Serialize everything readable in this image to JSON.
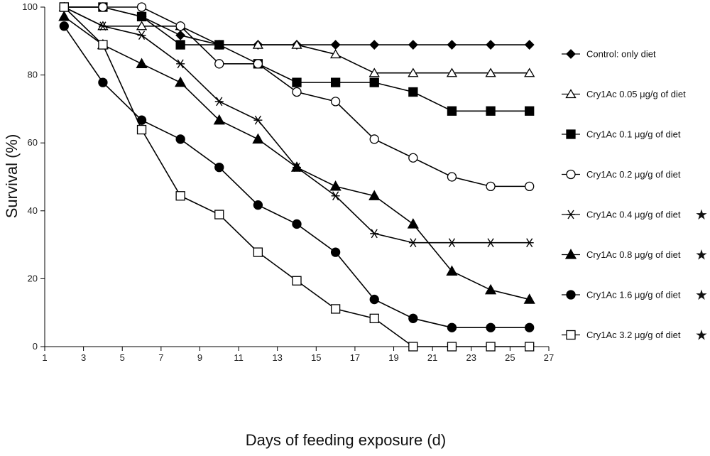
{
  "chart_data": {
    "type": "line",
    "title": "",
    "xlabel": "Days of feeding exposure (d)",
    "ylabel": "Survival (%)",
    "xlim": [
      1,
      27
    ],
    "ylim": [
      0,
      100
    ],
    "xticks": [
      1,
      3,
      5,
      7,
      9,
      11,
      13,
      15,
      17,
      19,
      21,
      23,
      25,
      27
    ],
    "yticks": [
      0,
      20,
      40,
      60,
      80,
      100
    ],
    "grid": false,
    "legend_position": "right",
    "x": [
      2,
      4,
      6,
      8,
      10,
      12,
      14,
      16,
      18,
      20,
      22,
      24,
      26
    ],
    "series": [
      {
        "name": "Control: only diet",
        "marker": "diamond-filled",
        "starred": false,
        "values": [
          100,
          100,
          97.2,
          91.7,
          88.9,
          88.9,
          88.9,
          88.9,
          88.9,
          88.9,
          88.9,
          88.9,
          88.9
        ]
      },
      {
        "name": "Cry1Ac  0.05 μg/g of diet",
        "marker": "triangle-open",
        "starred": false,
        "values": [
          100,
          94.4,
          94.4,
          94.4,
          88.9,
          88.9,
          88.9,
          86.1,
          80.6,
          80.6,
          80.6,
          80.6,
          80.6
        ]
      },
      {
        "name": "Cry1Ac  0.1 μg/g of diet",
        "marker": "square-filled",
        "starred": false,
        "values": [
          100,
          100,
          97.2,
          88.9,
          88.9,
          83.3,
          77.8,
          77.8,
          77.8,
          75.0,
          69.4,
          69.4,
          69.4
        ]
      },
      {
        "name": "Cry1Ac  0.2 μg/g of diet",
        "marker": "circle-open",
        "starred": false,
        "values": [
          100,
          100,
          100,
          94.4,
          83.3,
          83.3,
          75.0,
          72.2,
          61.1,
          55.6,
          50.0,
          47.2,
          47.2
        ]
      },
      {
        "name": "Cry1Ac  0.4 μg/g of diet",
        "marker": "asterisk",
        "starred": true,
        "values": [
          100,
          94.4,
          91.7,
          83.3,
          72.2,
          66.7,
          52.8,
          44.4,
          33.3,
          30.6,
          30.6,
          30.6,
          30.6
        ]
      },
      {
        "name": "Cry1Ac  0.8 μg/g of diet",
        "marker": "triangle-filled",
        "starred": true,
        "values": [
          97.2,
          88.9,
          83.3,
          77.8,
          66.7,
          61.1,
          52.8,
          47.2,
          44.4,
          36.1,
          22.2,
          16.7,
          13.9
        ]
      },
      {
        "name": "Cry1Ac  1.6 μg/g of diet",
        "marker": "circle-filled",
        "starred": true,
        "values": [
          94.4,
          77.8,
          66.7,
          61.1,
          52.8,
          41.7,
          36.1,
          27.8,
          13.9,
          8.3,
          5.6,
          5.6,
          5.6
        ]
      },
      {
        "name": "Cry1Ac  3.2 μg/g of diet",
        "marker": "square-open",
        "starred": true,
        "values": [
          100,
          88.9,
          63.9,
          44.4,
          38.9,
          27.8,
          19.4,
          11.1,
          8.3,
          0,
          0,
          0,
          0
        ]
      }
    ],
    "star_symbol": "★",
    "colors": {
      "line": "#000000",
      "marker": "#000000",
      "background": "#ffffff"
    }
  }
}
